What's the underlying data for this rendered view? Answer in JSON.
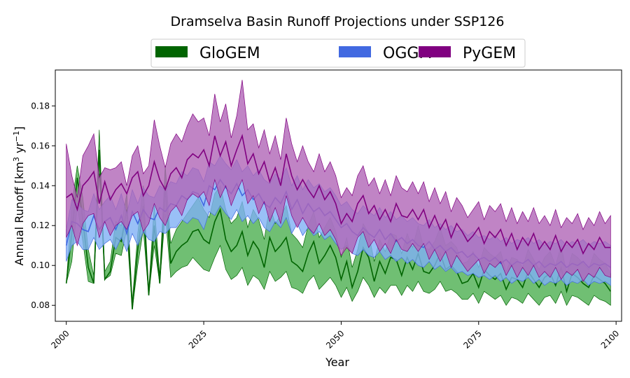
{
  "chart_data": {
    "type": "area",
    "title": "Dramselva Basin Runoff Projections under SSP126",
    "xlabel": "Year",
    "ylabel_main": "Annual Runoff [km",
    "ylabel_sup1": "3",
    "ylabel_mid": " yr",
    "ylabel_sup2": "−1",
    "ylabel_end": "]",
    "xlim": [
      1998,
      2101
    ],
    "ylim": [
      0.072,
      0.198
    ],
    "xticks": [
      2000,
      2025,
      2050,
      2075,
      2100
    ],
    "yticks": [
      0.08,
      0.1,
      0.12,
      0.14,
      0.16,
      0.18
    ],
    "ytick_labels": [
      "0.08",
      "0.10",
      "0.12",
      "0.14",
      "0.16",
      "0.18"
    ],
    "legend_position": "top-center",
    "x_start": 2000,
    "series": [
      {
        "name": "GloGEM",
        "color": "#006400",
        "fill": "#4caf50",
        "values": [
          0.091,
          0.116,
          0.144,
          0.123,
          0.099,
          0.091,
          0.158,
          0.093,
          0.097,
          0.114,
          0.112,
          0.128,
          0.078,
          0.108,
          0.13,
          0.085,
          0.12,
          0.091,
          0.14,
          0.101,
          0.107,
          0.11,
          0.112,
          0.117,
          0.118,
          0.113,
          0.111,
          0.122,
          0.128,
          0.113,
          0.107,
          0.11,
          0.117,
          0.105,
          0.112,
          0.108,
          0.099,
          0.114,
          0.107,
          0.11,
          0.114,
          0.102,
          0.1,
          0.097,
          0.106,
          0.112,
          0.101,
          0.105,
          0.11,
          0.104,
          0.093,
          0.102,
          0.089,
          0.097,
          0.109,
          0.104,
          0.092,
          0.102,
          0.096,
          0.104,
          0.103,
          0.095,
          0.104,
          0.098,
          0.106,
          0.097,
          0.096,
          0.1,
          0.106,
          0.098,
          0.1,
          0.097,
          0.091,
          0.092,
          0.096,
          0.089,
          0.098,
          0.095,
          0.093,
          0.096,
          0.088,
          0.094,
          0.093,
          0.089,
          0.097,
          0.093,
          0.089,
          0.094,
          0.096,
          0.09,
          0.099,
          0.087,
          0.096,
          0.094,
          0.091,
          0.089,
          0.095,
          0.093,
          0.091,
          0.087
        ],
        "lower": [
          0.091,
          0.102,
          0.13,
          0.112,
          0.092,
          0.091,
          0.146,
          0.093,
          0.095,
          0.106,
          0.105,
          0.118,
          0.078,
          0.1,
          0.118,
          0.085,
          0.11,
          0.091,
          0.126,
          0.094,
          0.097,
          0.099,
          0.1,
          0.104,
          0.101,
          0.098,
          0.097,
          0.104,
          0.11,
          0.098,
          0.093,
          0.095,
          0.099,
          0.09,
          0.095,
          0.093,
          0.088,
          0.097,
          0.092,
          0.094,
          0.097,
          0.089,
          0.088,
          0.086,
          0.092,
          0.095,
          0.088,
          0.091,
          0.094,
          0.09,
          0.084,
          0.089,
          0.082,
          0.087,
          0.094,
          0.09,
          0.084,
          0.089,
          0.086,
          0.09,
          0.09,
          0.085,
          0.09,
          0.087,
          0.092,
          0.087,
          0.086,
          0.088,
          0.092,
          0.087,
          0.088,
          0.086,
          0.083,
          0.083,
          0.086,
          0.081,
          0.087,
          0.085,
          0.083,
          0.085,
          0.08,
          0.084,
          0.083,
          0.081,
          0.086,
          0.083,
          0.08,
          0.084,
          0.085,
          0.081,
          0.087,
          0.08,
          0.085,
          0.084,
          0.082,
          0.08,
          0.085,
          0.083,
          0.082,
          0.08
        ],
        "upper": [
          0.091,
          0.13,
          0.15,
          0.134,
          0.108,
          0.095,
          0.168,
          0.097,
          0.102,
          0.122,
          0.12,
          0.136,
          0.082,
          0.116,
          0.14,
          0.088,
          0.13,
          0.095,
          0.15,
          0.111,
          0.118,
          0.122,
          0.126,
          0.13,
          0.134,
          0.128,
          0.124,
          0.136,
          0.14,
          0.128,
          0.121,
          0.124,
          0.132,
          0.119,
          0.128,
          0.123,
          0.113,
          0.13,
          0.121,
          0.125,
          0.13,
          0.116,
          0.113,
          0.109,
          0.12,
          0.127,
          0.114,
          0.119,
          0.124,
          0.117,
          0.104,
          0.114,
          0.099,
          0.108,
          0.121,
          0.116,
          0.102,
          0.113,
          0.107,
          0.116,
          0.115,
          0.106,
          0.116,
          0.109,
          0.12,
          0.109,
          0.108,
          0.112,
          0.119,
          0.11,
          0.112,
          0.109,
          0.101,
          0.102,
          0.107,
          0.099,
          0.109,
          0.106,
          0.104,
          0.107,
          0.097,
          0.104,
          0.103,
          0.099,
          0.108,
          0.103,
          0.098,
          0.104,
          0.107,
          0.1,
          0.11,
          0.096,
          0.106,
          0.104,
          0.101,
          0.098,
          0.106,
          0.103,
          0.101,
          0.096
        ]
      },
      {
        "name": "OGGM",
        "color": "#4169e1",
        "fill": "#7fb0f5",
        "values": [
          0.11,
          0.122,
          0.121,
          0.118,
          0.117,
          0.125,
          0.118,
          0.122,
          0.124,
          0.118,
          0.125,
          0.116,
          0.127,
          0.121,
          0.128,
          0.124,
          0.123,
          0.129,
          0.127,
          0.131,
          0.13,
          0.135,
          0.133,
          0.137,
          0.136,
          0.13,
          0.14,
          0.138,
          0.143,
          0.139,
          0.136,
          0.141,
          0.135,
          0.138,
          0.133,
          0.136,
          0.131,
          0.129,
          0.134,
          0.131,
          0.137,
          0.128,
          0.133,
          0.126,
          0.131,
          0.127,
          0.129,
          0.125,
          0.127,
          0.123,
          0.119,
          0.121,
          0.117,
          0.115,
          0.119,
          0.116,
          0.114,
          0.118,
          0.113,
          0.116,
          0.112,
          0.114,
          0.111,
          0.113,
          0.11,
          0.109,
          0.112,
          0.108,
          0.11,
          0.107,
          0.109,
          0.106,
          0.107,
          0.104,
          0.106,
          0.103,
          0.104,
          0.102,
          0.104,
          0.101,
          0.103,
          0.1,
          0.102,
          0.101,
          0.103,
          0.1,
          0.102,
          0.099,
          0.101,
          0.1,
          0.102,
          0.099,
          0.101,
          0.1,
          0.102,
          0.099,
          0.101,
          0.1,
          0.101,
          0.099
        ],
        "lower": [
          0.102,
          0.11,
          0.112,
          0.108,
          0.108,
          0.114,
          0.108,
          0.111,
          0.113,
          0.108,
          0.114,
          0.107,
          0.116,
          0.11,
          0.117,
          0.113,
          0.112,
          0.117,
          0.116,
          0.119,
          0.119,
          0.123,
          0.121,
          0.124,
          0.123,
          0.118,
          0.127,
          0.125,
          0.13,
          0.126,
          0.123,
          0.128,
          0.122,
          0.125,
          0.121,
          0.124,
          0.119,
          0.117,
          0.122,
          0.119,
          0.124,
          0.116,
          0.121,
          0.115,
          0.119,
          0.115,
          0.117,
          0.113,
          0.115,
          0.111,
          0.108,
          0.11,
          0.106,
          0.105,
          0.108,
          0.105,
          0.104,
          0.107,
          0.103,
          0.105,
          0.102,
          0.104,
          0.101,
          0.103,
          0.1,
          0.099,
          0.102,
          0.098,
          0.1,
          0.097,
          0.099,
          0.096,
          0.097,
          0.095,
          0.096,
          0.094,
          0.095,
          0.093,
          0.095,
          0.092,
          0.094,
          0.091,
          0.093,
          0.092,
          0.094,
          0.091,
          0.093,
          0.09,
          0.092,
          0.091,
          0.093,
          0.09,
          0.092,
          0.091,
          0.093,
          0.09,
          0.092,
          0.091,
          0.092,
          0.09
        ],
        "upper": [
          0.118,
          0.133,
          0.131,
          0.128,
          0.127,
          0.136,
          0.128,
          0.132,
          0.135,
          0.128,
          0.136,
          0.126,
          0.138,
          0.131,
          0.139,
          0.135,
          0.134,
          0.14,
          0.138,
          0.142,
          0.141,
          0.147,
          0.145,
          0.149,
          0.148,
          0.142,
          0.152,
          0.15,
          0.155,
          0.151,
          0.148,
          0.153,
          0.147,
          0.15,
          0.145,
          0.148,
          0.143,
          0.141,
          0.146,
          0.143,
          0.149,
          0.14,
          0.145,
          0.138,
          0.143,
          0.139,
          0.141,
          0.137,
          0.139,
          0.135,
          0.13,
          0.132,
          0.128,
          0.126,
          0.13,
          0.127,
          0.125,
          0.129,
          0.124,
          0.127,
          0.123,
          0.125,
          0.122,
          0.124,
          0.121,
          0.12,
          0.123,
          0.119,
          0.121,
          0.118,
          0.12,
          0.117,
          0.118,
          0.115,
          0.117,
          0.114,
          0.115,
          0.113,
          0.115,
          0.112,
          0.114,
          0.111,
          0.113,
          0.112,
          0.114,
          0.111,
          0.113,
          0.11,
          0.112,
          0.111,
          0.113,
          0.11,
          0.112,
          0.111,
          0.113,
          0.11,
          0.112,
          0.111,
          0.112,
          0.11
        ]
      },
      {
        "name": "PyGEM",
        "color": "#800080",
        "fill": "#b065b6",
        "values": [
          0.134,
          0.136,
          0.128,
          0.14,
          0.143,
          0.147,
          0.131,
          0.142,
          0.133,
          0.138,
          0.141,
          0.136,
          0.144,
          0.147,
          0.135,
          0.14,
          0.152,
          0.143,
          0.138,
          0.146,
          0.149,
          0.144,
          0.153,
          0.156,
          0.154,
          0.158,
          0.15,
          0.165,
          0.155,
          0.162,
          0.15,
          0.158,
          0.165,
          0.151,
          0.156,
          0.146,
          0.152,
          0.142,
          0.149,
          0.14,
          0.156,
          0.145,
          0.138,
          0.143,
          0.138,
          0.134,
          0.14,
          0.133,
          0.137,
          0.131,
          0.121,
          0.126,
          0.122,
          0.131,
          0.135,
          0.126,
          0.13,
          0.123,
          0.128,
          0.122,
          0.131,
          0.125,
          0.124,
          0.128,
          0.123,
          0.128,
          0.119,
          0.125,
          0.118,
          0.123,
          0.114,
          0.121,
          0.117,
          0.112,
          0.115,
          0.119,
          0.111,
          0.117,
          0.114,
          0.118,
          0.11,
          0.116,
          0.108,
          0.114,
          0.11,
          0.116,
          0.108,
          0.112,
          0.108,
          0.115,
          0.107,
          0.112,
          0.109,
          0.113,
          0.106,
          0.111,
          0.108,
          0.114,
          0.109,
          0.109
        ],
        "lower": [
          0.114,
          0.12,
          0.11,
          0.121,
          0.125,
          0.126,
          0.114,
          0.122,
          0.115,
          0.12,
          0.122,
          0.118,
          0.125,
          0.127,
          0.117,
          0.121,
          0.131,
          0.124,
          0.12,
          0.127,
          0.13,
          0.125,
          0.133,
          0.136,
          0.134,
          0.137,
          0.13,
          0.143,
          0.134,
          0.14,
          0.13,
          0.137,
          0.143,
          0.131,
          0.135,
          0.126,
          0.132,
          0.122,
          0.129,
          0.121,
          0.135,
          0.125,
          0.119,
          0.124,
          0.119,
          0.116,
          0.121,
          0.115,
          0.118,
          0.113,
          0.105,
          0.109,
          0.106,
          0.114,
          0.117,
          0.109,
          0.113,
          0.107,
          0.111,
          0.106,
          0.113,
          0.108,
          0.107,
          0.111,
          0.107,
          0.111,
          0.103,
          0.108,
          0.102,
          0.107,
          0.099,
          0.105,
          0.101,
          0.097,
          0.1,
          0.103,
          0.096,
          0.101,
          0.099,
          0.102,
          0.095,
          0.1,
          0.094,
          0.099,
          0.095,
          0.1,
          0.094,
          0.097,
          0.094,
          0.099,
          0.093,
          0.097,
          0.095,
          0.098,
          0.092,
          0.096,
          0.094,
          0.099,
          0.095,
          0.094
        ],
        "upper": [
          0.161,
          0.145,
          0.134,
          0.155,
          0.16,
          0.166,
          0.144,
          0.149,
          0.148,
          0.149,
          0.152,
          0.14,
          0.155,
          0.16,
          0.146,
          0.15,
          0.173,
          0.16,
          0.149,
          0.161,
          0.166,
          0.162,
          0.17,
          0.176,
          0.172,
          0.174,
          0.165,
          0.186,
          0.172,
          0.181,
          0.164,
          0.175,
          0.193,
          0.168,
          0.171,
          0.159,
          0.168,
          0.156,
          0.165,
          0.153,
          0.174,
          0.161,
          0.152,
          0.16,
          0.152,
          0.147,
          0.156,
          0.147,
          0.152,
          0.145,
          0.134,
          0.139,
          0.135,
          0.145,
          0.15,
          0.14,
          0.144,
          0.136,
          0.143,
          0.135,
          0.145,
          0.139,
          0.137,
          0.142,
          0.136,
          0.142,
          0.132,
          0.139,
          0.131,
          0.137,
          0.127,
          0.134,
          0.13,
          0.124,
          0.128,
          0.132,
          0.123,
          0.13,
          0.127,
          0.131,
          0.122,
          0.129,
          0.121,
          0.127,
          0.122,
          0.129,
          0.121,
          0.125,
          0.12,
          0.128,
          0.119,
          0.124,
          0.121,
          0.126,
          0.118,
          0.124,
          0.12,
          0.127,
          0.121,
          0.125
        ]
      }
    ]
  }
}
